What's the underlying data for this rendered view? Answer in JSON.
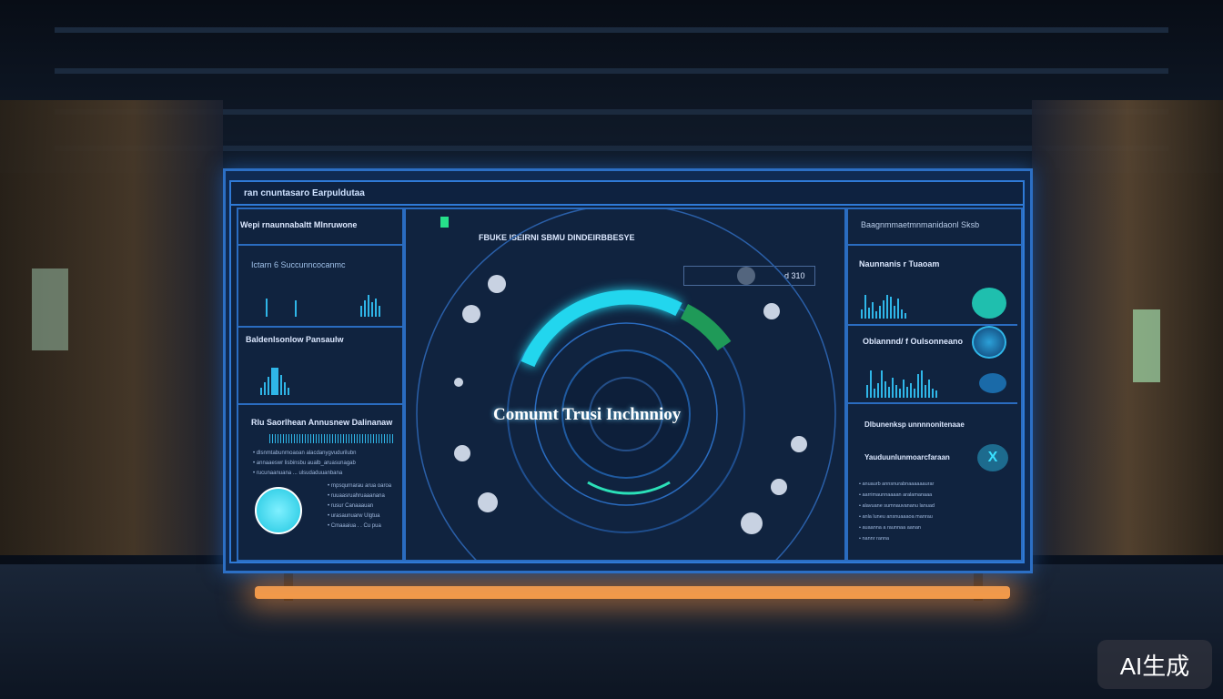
{
  "screen": {
    "header_title": "ran cnuntasaro Earpuldutaa",
    "left": {
      "title": "Wepi rnaunnabaltt Mlnruwone",
      "section1_label": "Ictarn 6   Succunncocanmc",
      "section2_label": "Baldenlsonlow Pansaulw",
      "section3_label": "Rlu  Saorlhean Annusnew  Dalinanaw",
      "section3_lines": [
        "• dlsnmtabunrnoaoan alacdanygvudurilubn",
        "• annaaeswr lisbinsbu aualb_aruasunagab",
        "• rucunaanuana ... ulsudaduuanbana",
        "• rnpsqurnarau arua oaroa",
        "• ruuaasruahruaaanana",
        "• rusur Canaaauan",
        "• urasaunuarw Ulgtua",
        "• Cmaaaiua . . Cu pua"
      ]
    },
    "center": {
      "title": "FBUKE ISEIRNI SBMU DINDEIRBBESYE",
      "readout": "d 310",
      "gauge_label": "Comumt Trusi Inchnnioy",
      "gauge_level_percent": 55
    },
    "right": {
      "title": "Baagnmmaetmnmanidaonl Sksb",
      "section1_label": "Naunnanis r Tuaoam",
      "section2_label": "Oblannnd/ f Oulsonneano",
      "section3_label": "Dlbunenksp   unnnnonitenaae",
      "section4_label": "Yauduunlunmoarcfaraan",
      "lines": [
        "• anuaurb annsnurabnaaaaaaurar",
        "• aarrimaunnaaaan aralamanaaa",
        "• alavuane sumnauvananu lanuad",
        "• anla luneu ansnuaaaoa manrau",
        "• auaanna a raunnaa aanan",
        "• nannr ranna"
      ]
    }
  },
  "watermark": "AI生成",
  "colors": {
    "accent": "#2fb6e8",
    "frame": "#2f7ad6",
    "gauge_green": "#1f9a58",
    "underglow": "#f29a4a"
  }
}
